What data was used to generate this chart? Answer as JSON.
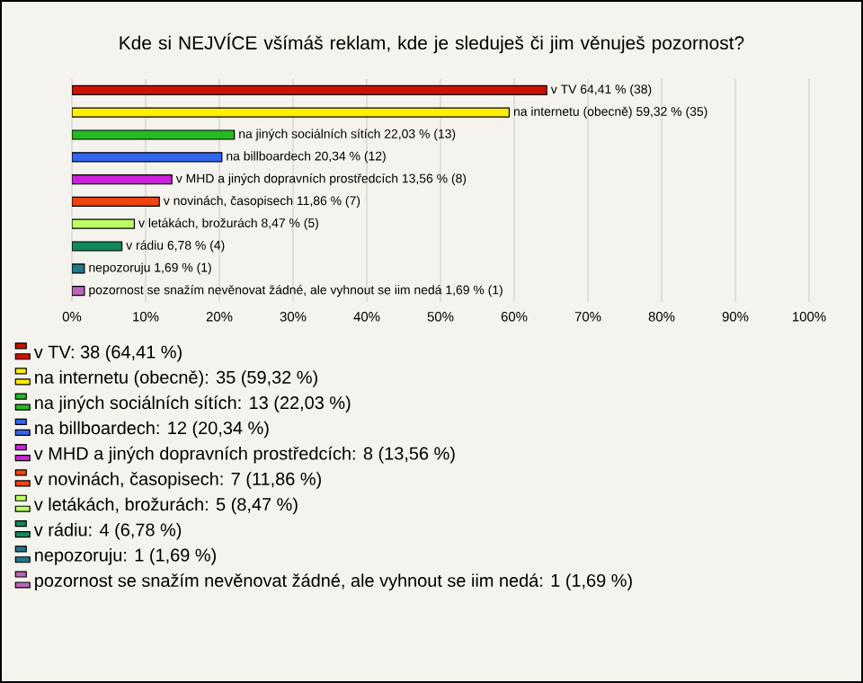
{
  "chart_data": {
    "type": "bar",
    "orientation": "horizontal",
    "title": "Kde si NEJVÍCE všímáš reklam, kde je sleduješ či jim věnuješ pozornost?",
    "categories": [
      null
    ],
    "series": [
      {
        "name": "v TV: 38 (64,41 %)",
        "color": "#cc1100",
        "values": [
          64.41
        ],
        "value_labels": [
          "v TV 64,41 % (38)"
        ]
      },
      {
        "name": "na internetu (obecně): 35 (59,32 %)",
        "color": "#ffee00",
        "values": [
          59.32
        ],
        "value_labels": [
          "na internetu (obecně) 59,32 % (35)"
        ]
      },
      {
        "name": "na jiných sociálních sítích: 13 (22,03 %)",
        "color": "#22bb22",
        "values": [
          22.03
        ],
        "value_labels": [
          "na jiných sociálních sítích 22,03 % (13)"
        ]
      },
      {
        "name": "na billboardech: 12 (20,34 %)",
        "color": "#3366ee",
        "values": [
          20.34
        ],
        "value_labels": [
          "na billboardech 20,34 % (12)"
        ]
      },
      {
        "name": "v MHD a jiných dopravních prostředcích: 8 (13,56 %)",
        "color": "#cc22dd",
        "values": [
          13.56
        ],
        "value_labels": [
          "v MHD a jiných dopravních prostředcích 13,56 % (8)"
        ]
      },
      {
        "name": "v novinách, časopisech: 7 (11,86 %)",
        "color": "#ee4411",
        "values": [
          11.86
        ],
        "value_labels": [
          "v novinách, časopisech 11,86 % (7)"
        ]
      },
      {
        "name": "v letákách, brožurách: 5 (8,47 %)",
        "color": "#bbff66",
        "values": [
          8.47
        ],
        "value_labels": [
          "v letákách, brožurách 8,47 % (5)"
        ]
      },
      {
        "name": "v rádiu: 4 (6,78 %)",
        "color": "#118855",
        "values": [
          6.78
        ],
        "value_labels": [
          "v rádiu 6,78 % (4)"
        ]
      },
      {
        "name": "nepozoruju: 1 (1,69 %)",
        "color": "#227788",
        "values": [
          1.69
        ],
        "value_labels": [
          "nepozoruju 1,69 % (1)"
        ]
      },
      {
        "name": "pozornost se snažím nevěnovat žádné, ale vyhnout se iim nedá: 1 (1,69 %)",
        "color": "#bb66bb",
        "values": [
          1.69
        ],
        "value_labels": [
          "pozornost se snažím nevěnovat žádné, ale vyhnout se iim nedá 1,69 % (1)"
        ]
      }
    ],
    "xlim": [
      0,
      100
    ],
    "xticks": [
      {
        "value": 0,
        "label": "0%"
      },
      {
        "value": 10,
        "label": "10%"
      },
      {
        "value": 20,
        "label": "20%"
      },
      {
        "value": 30,
        "label": "30%"
      },
      {
        "value": 40,
        "label": "40%"
      },
      {
        "value": 50,
        "label": "50%"
      },
      {
        "value": 60,
        "label": "60%"
      },
      {
        "value": 70,
        "label": "70%"
      },
      {
        "value": 80,
        "label": "80%"
      },
      {
        "value": 90,
        "label": "90%"
      },
      {
        "value": 100,
        "label": "100%"
      }
    ],
    "grid": "x",
    "legend": "bottom"
  }
}
